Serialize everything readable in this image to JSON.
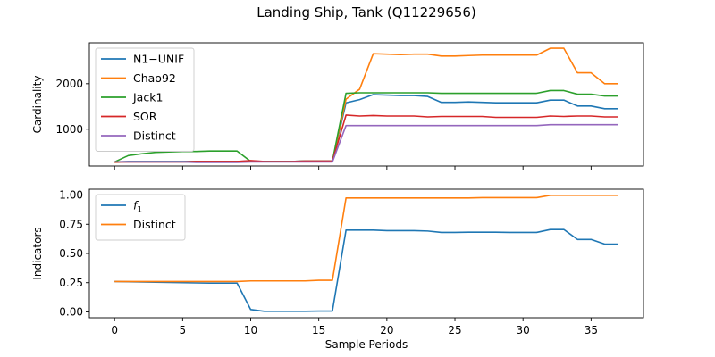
{
  "figure_title": "Landing Ship, Tank (Q11229656)",
  "chart_data": [
    {
      "type": "line",
      "title": "",
      "xlabel": "",
      "ylabel": "Cardinality",
      "xlim": [
        -1.85,
        38.85
      ],
      "ylim": [
        190,
        2900
      ],
      "xticks": [
        0,
        5,
        10,
        15,
        20,
        25,
        30,
        35
      ],
      "show_xtick_labels": false,
      "yticks": [
        1000,
        2000
      ],
      "ytick_labels": [
        "1000",
        "2000"
      ],
      "grid": false,
      "legend_position": "top-left",
      "x": [
        0,
        1,
        2,
        3,
        4,
        5,
        6,
        7,
        8,
        9,
        10,
        11,
        12,
        13,
        14,
        15,
        16,
        17,
        18,
        19,
        20,
        21,
        22,
        23,
        24,
        25,
        26,
        27,
        28,
        29,
        30,
        31,
        32,
        33,
        34,
        35,
        36,
        37
      ],
      "series": [
        {
          "name": "N1−UNIF",
          "color": "#1f77b4",
          "values": [
            280,
            290,
            290,
            290,
            290,
            290,
            290,
            290,
            290,
            290,
            300,
            290,
            290,
            290,
            300,
            300,
            300,
            1580,
            1650,
            1760,
            1750,
            1740,
            1740,
            1720,
            1590,
            1590,
            1600,
            1590,
            1580,
            1580,
            1580,
            1580,
            1640,
            1640,
            1510,
            1510,
            1450,
            1450
          ]
        },
        {
          "name": "Chao92",
          "color": "#ff7f0e",
          "values": [
            270,
            280,
            280,
            280,
            280,
            280,
            280,
            280,
            280,
            280,
            290,
            290,
            290,
            290,
            290,
            290,
            290,
            1660,
            1880,
            2660,
            2650,
            2640,
            2650,
            2650,
            2610,
            2610,
            2620,
            2630,
            2630,
            2630,
            2630,
            2630,
            2780,
            2780,
            2240,
            2240,
            2000,
            2000
          ]
        },
        {
          "name": "Jack1",
          "color": "#2ca02c",
          "values": [
            280,
            420,
            460,
            490,
            500,
            510,
            510,
            520,
            520,
            520,
            290,
            290,
            290,
            290,
            300,
            300,
            300,
            1790,
            1800,
            1800,
            1800,
            1800,
            1800,
            1800,
            1790,
            1790,
            1790,
            1790,
            1790,
            1790,
            1790,
            1790,
            1850,
            1850,
            1770,
            1770,
            1730,
            1730
          ]
        },
        {
          "name": "SOR",
          "color": "#d62728",
          "values": [
            280,
            280,
            280,
            280,
            280,
            280,
            290,
            290,
            290,
            290,
            310,
            290,
            290,
            290,
            300,
            300,
            300,
            1310,
            1290,
            1300,
            1290,
            1290,
            1290,
            1270,
            1280,
            1280,
            1280,
            1280,
            1260,
            1260,
            1260,
            1260,
            1290,
            1280,
            1290,
            1290,
            1270,
            1270
          ]
        },
        {
          "name": "Distinct",
          "color": "#9467bd",
          "values": [
            280,
            280,
            280,
            280,
            280,
            280,
            270,
            270,
            270,
            270,
            280,
            280,
            280,
            280,
            280,
            280,
            280,
            1080,
            1080,
            1080,
            1080,
            1080,
            1080,
            1080,
            1080,
            1080,
            1080,
            1080,
            1080,
            1080,
            1080,
            1080,
            1100,
            1100,
            1100,
            1100,
            1100,
            1100
          ]
        }
      ]
    },
    {
      "type": "line",
      "title": "",
      "xlabel": "Sample Periods",
      "ylabel": "Indicators",
      "xlim": [
        -1.85,
        38.85
      ],
      "ylim": [
        -0.05,
        1.05
      ],
      "xticks": [
        0,
        5,
        10,
        15,
        20,
        25,
        30,
        35
      ],
      "xtick_labels": [
        "0",
        "5",
        "10",
        "15",
        "20",
        "25",
        "30",
        "35"
      ],
      "show_xtick_labels": true,
      "yticks": [
        0.0,
        0.25,
        0.5,
        0.75,
        1.0
      ],
      "ytick_labels": [
        "0.00",
        "0.25",
        "0.50",
        "0.75",
        "1.00"
      ],
      "grid": false,
      "legend_position": "top-left",
      "x": [
        0,
        1,
        2,
        3,
        4,
        5,
        6,
        7,
        8,
        9,
        10,
        11,
        12,
        13,
        14,
        15,
        16,
        17,
        18,
        19,
        20,
        21,
        22,
        23,
        24,
        25,
        26,
        27,
        28,
        29,
        30,
        31,
        32,
        33,
        34,
        35,
        36,
        37
      ],
      "series": [
        {
          "name": "f1",
          "label_main": "f",
          "label_sub": "1",
          "color": "#1f77b4",
          "values": [
            0.26,
            0.258,
            0.256,
            0.254,
            0.252,
            0.25,
            0.248,
            0.246,
            0.246,
            0.246,
            0.02,
            0.005,
            0.005,
            0.005,
            0.005,
            0.007,
            0.007,
            0.7,
            0.7,
            0.7,
            0.695,
            0.695,
            0.695,
            0.692,
            0.68,
            0.68,
            0.682,
            0.682,
            0.682,
            0.68,
            0.68,
            0.68,
            0.705,
            0.705,
            0.62,
            0.62,
            0.58,
            0.58
          ]
        },
        {
          "name": "Distinct",
          "color": "#ff7f0e",
          "values": [
            0.26,
            0.26,
            0.26,
            0.26,
            0.26,
            0.26,
            0.26,
            0.26,
            0.26,
            0.26,
            0.265,
            0.265,
            0.265,
            0.265,
            0.265,
            0.27,
            0.27,
            0.975,
            0.975,
            0.975,
            0.975,
            0.975,
            0.975,
            0.975,
            0.975,
            0.975,
            0.975,
            0.978,
            0.978,
            0.978,
            0.978,
            0.978,
            0.998,
            0.998,
            0.998,
            0.998,
            0.998,
            0.998
          ]
        }
      ]
    }
  ]
}
